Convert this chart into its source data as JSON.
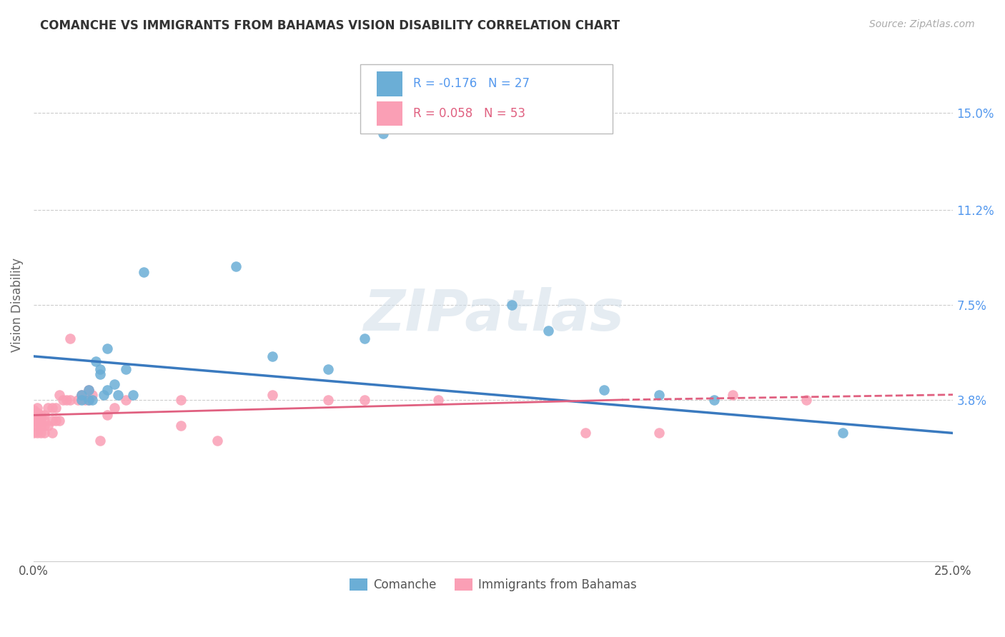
{
  "title": "COMANCHE VS IMMIGRANTS FROM BAHAMAS VISION DISABILITY CORRELATION CHART",
  "source": "Source: ZipAtlas.com",
  "ylabel": "Vision Disability",
  "ytick_labels": [
    "15.0%",
    "11.2%",
    "7.5%",
    "3.8%"
  ],
  "ytick_values": [
    0.15,
    0.112,
    0.075,
    0.038
  ],
  "xlim": [
    0.0,
    0.25
  ],
  "ylim": [
    -0.025,
    0.175
  ],
  "legend_line1": "R = -0.176   N = 27",
  "legend_line2": "R = 0.058   N = 53",
  "color_blue": "#6baed6",
  "color_pink": "#fa9fb5",
  "trendline_blue": "#3a7abf",
  "trendline_pink": "#e06080",
  "watermark": "ZIPatlas",
  "trendline_blue_start": 0.055,
  "trendline_blue_end": 0.025,
  "trendline_pink_start": 0.032,
  "trendline_pink_solid_end_x": 0.16,
  "trendline_pink_solid_end_y": 0.038,
  "trendline_pink_dashed_end_x": 0.25,
  "trendline_pink_dashed_end_y": 0.04,
  "comanche_x": [
    0.013,
    0.013,
    0.015,
    0.015,
    0.016,
    0.017,
    0.018,
    0.018,
    0.019,
    0.02,
    0.02,
    0.022,
    0.023,
    0.025,
    0.027,
    0.03,
    0.055,
    0.065,
    0.08,
    0.09,
    0.095,
    0.13,
    0.14,
    0.155,
    0.17,
    0.185,
    0.22
  ],
  "comanche_y": [
    0.038,
    0.04,
    0.038,
    0.042,
    0.038,
    0.053,
    0.05,
    0.048,
    0.04,
    0.058,
    0.042,
    0.044,
    0.04,
    0.05,
    0.04,
    0.088,
    0.09,
    0.055,
    0.05,
    0.062,
    0.142,
    0.075,
    0.065,
    0.042,
    0.04,
    0.038,
    0.025
  ],
  "bahamas_x": [
    0.0,
    0.0,
    0.0,
    0.0,
    0.0,
    0.001,
    0.001,
    0.001,
    0.001,
    0.001,
    0.001,
    0.002,
    0.002,
    0.002,
    0.002,
    0.003,
    0.003,
    0.003,
    0.003,
    0.004,
    0.004,
    0.005,
    0.005,
    0.005,
    0.006,
    0.006,
    0.007,
    0.007,
    0.008,
    0.009,
    0.01,
    0.01,
    0.012,
    0.013,
    0.014,
    0.015,
    0.015,
    0.016,
    0.018,
    0.02,
    0.022,
    0.025,
    0.04,
    0.04,
    0.05,
    0.065,
    0.08,
    0.09,
    0.11,
    0.15,
    0.17,
    0.19,
    0.21
  ],
  "bahamas_y": [
    0.025,
    0.028,
    0.03,
    0.032,
    0.034,
    0.025,
    0.028,
    0.03,
    0.031,
    0.033,
    0.035,
    0.025,
    0.028,
    0.03,
    0.032,
    0.025,
    0.028,
    0.03,
    0.032,
    0.028,
    0.035,
    0.025,
    0.03,
    0.035,
    0.03,
    0.035,
    0.03,
    0.04,
    0.038,
    0.038,
    0.038,
    0.062,
    0.038,
    0.04,
    0.038,
    0.038,
    0.042,
    0.04,
    0.022,
    0.032,
    0.035,
    0.038,
    0.028,
    0.038,
    0.022,
    0.04,
    0.038,
    0.038,
    0.038,
    0.025,
    0.025,
    0.04,
    0.038
  ]
}
